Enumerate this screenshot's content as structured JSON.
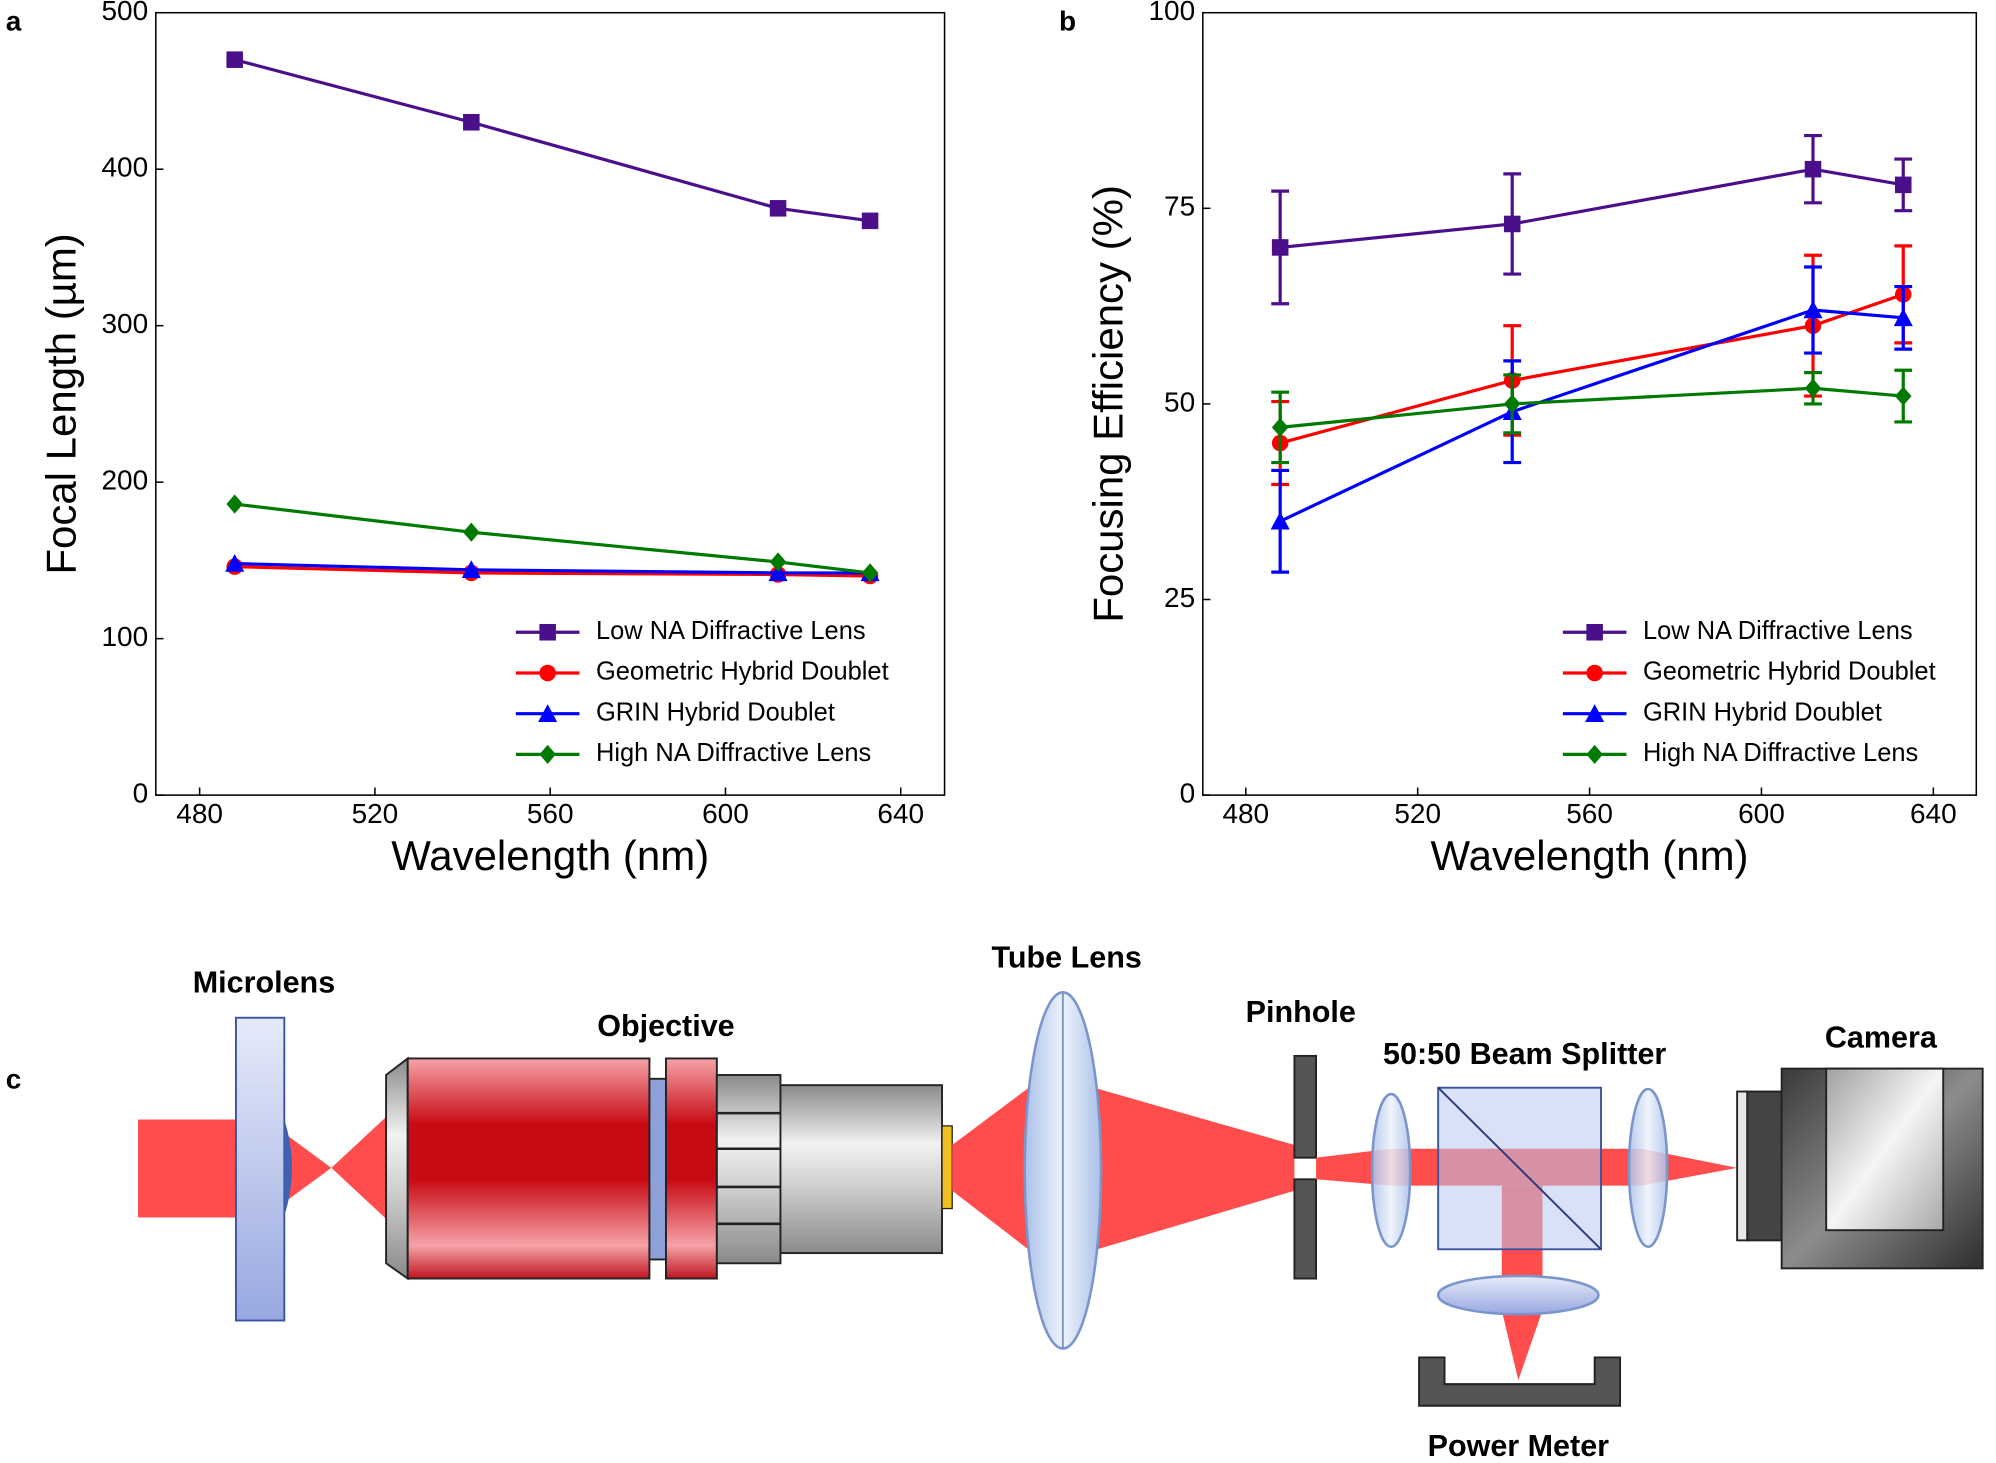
{
  "panel_labels": [
    "a",
    "b",
    "c"
  ],
  "chart_data": [
    {
      "type": "line",
      "x_label": "Wavelength (nm)",
      "y_label": "Focal Length (µm)",
      "x": [
        488,
        542,
        612,
        633
      ],
      "xlim": [
        470,
        650
      ],
      "xticks": [
        480,
        520,
        560,
        600,
        640
      ],
      "ylim": [
        0,
        500
      ],
      "yticks": [
        0,
        100,
        200,
        300,
        400,
        500
      ],
      "legend": "lower right",
      "series": [
        {
          "name": "Low NA Diffractive Lens",
          "color": "#4b0f8c",
          "marker": "square",
          "values": [
            470,
            430,
            375,
            367
          ]
        },
        {
          "name": "Geometric Hybrid Doublet",
          "color": "#ff0000",
          "marker": "circle",
          "values": [
            146,
            142,
            141,
            140
          ]
        },
        {
          "name": "GRIN Hybrid Doublet",
          "color": "#0000ff",
          "marker": "triangle",
          "values": [
            148,
            144,
            142,
            142
          ]
        },
        {
          "name": "High NA Diffractive Lens",
          "color": "#007a00",
          "marker": "diamond",
          "values": [
            186,
            168,
            149,
            142
          ]
        }
      ]
    },
    {
      "type": "line",
      "x_label": "Wavelength (nm)",
      "y_label": "Focusing Efficiency (%)",
      "x": [
        488,
        542,
        612,
        633
      ],
      "xlim": [
        470,
        650
      ],
      "xticks": [
        480,
        520,
        560,
        600,
        640
      ],
      "ylim": [
        0,
        100
      ],
      "yticks": [
        0,
        25,
        50,
        75,
        100
      ],
      "legend": "lower right",
      "series": [
        {
          "name": "Low NA Diffractive Lens",
          "color": "#4b0f8c",
          "marker": "square",
          "values": [
            70,
            73,
            80,
            78
          ],
          "errors": [
            7.2,
            6.4,
            4.3,
            3.3
          ]
        },
        {
          "name": "Geometric Hybrid Doublet",
          "color": "#ff0000",
          "marker": "circle",
          "values": [
            45,
            53,
            60,
            64
          ],
          "errors": [
            5.3,
            7,
            9,
            6.2
          ]
        },
        {
          "name": "GRIN Hybrid Doublet",
          "color": "#0000ff",
          "marker": "triangle",
          "values": [
            35,
            49,
            62,
            61
          ],
          "errors": [
            6.5,
            6.5,
            5.5,
            4
          ]
        },
        {
          "name": "High NA Diffractive Lens",
          "color": "#007a00",
          "marker": "diamond",
          "values": [
            47,
            50,
            52,
            51
          ],
          "errors": [
            4.5,
            3.7,
            2,
            3.3
          ]
        }
      ]
    }
  ],
  "diagram": {
    "labels": [
      "Microlens",
      "Objective",
      "Tube Lens",
      "Pinhole",
      "50:50 Beam Splitter",
      "Camera",
      "Power Meter"
    ]
  }
}
